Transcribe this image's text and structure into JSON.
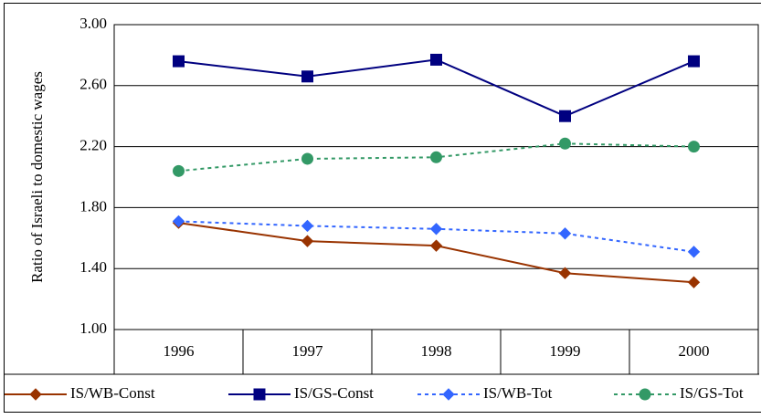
{
  "chart_data": {
    "type": "line",
    "y_label": "Ratio of Israeli to domestic wages",
    "categories": [
      "1996",
      "1997",
      "1998",
      "1999",
      "2000"
    ],
    "series": [
      {
        "name": "IS/WB-Const",
        "color": "#993300",
        "marker": "diamond",
        "dashed": false,
        "values": [
          1.7,
          1.58,
          1.55,
          1.37,
          1.31
        ]
      },
      {
        "name": "IS/GS-Const",
        "color": "#000080",
        "marker": "square",
        "dashed": false,
        "values": [
          2.76,
          2.66,
          2.77,
          2.4,
          2.76
        ]
      },
      {
        "name": "IS/WB-Tot",
        "color": "#3366ff",
        "marker": "diamond",
        "dashed": true,
        "values": [
          1.71,
          1.68,
          1.66,
          1.63,
          1.51
        ]
      },
      {
        "name": "IS/GS-Tot",
        "color": "#339966",
        "marker": "circle",
        "dashed": true,
        "values": [
          2.04,
          2.12,
          2.13,
          2.22,
          2.2
        ]
      }
    ],
    "ylim": [
      1,
      3
    ],
    "yticks": [
      {
        "value": 1,
        "label": "1.00"
      },
      {
        "value": 1.4,
        "label": "1.40"
      },
      {
        "value": 1.8,
        "label": "1.80"
      },
      {
        "value": 2.2,
        "label": "2.20"
      },
      {
        "value": 2.6,
        "label": "2.60"
      },
      {
        "value": 3,
        "label": "3.00"
      }
    ],
    "grid": true,
    "legend": "bottom"
  }
}
